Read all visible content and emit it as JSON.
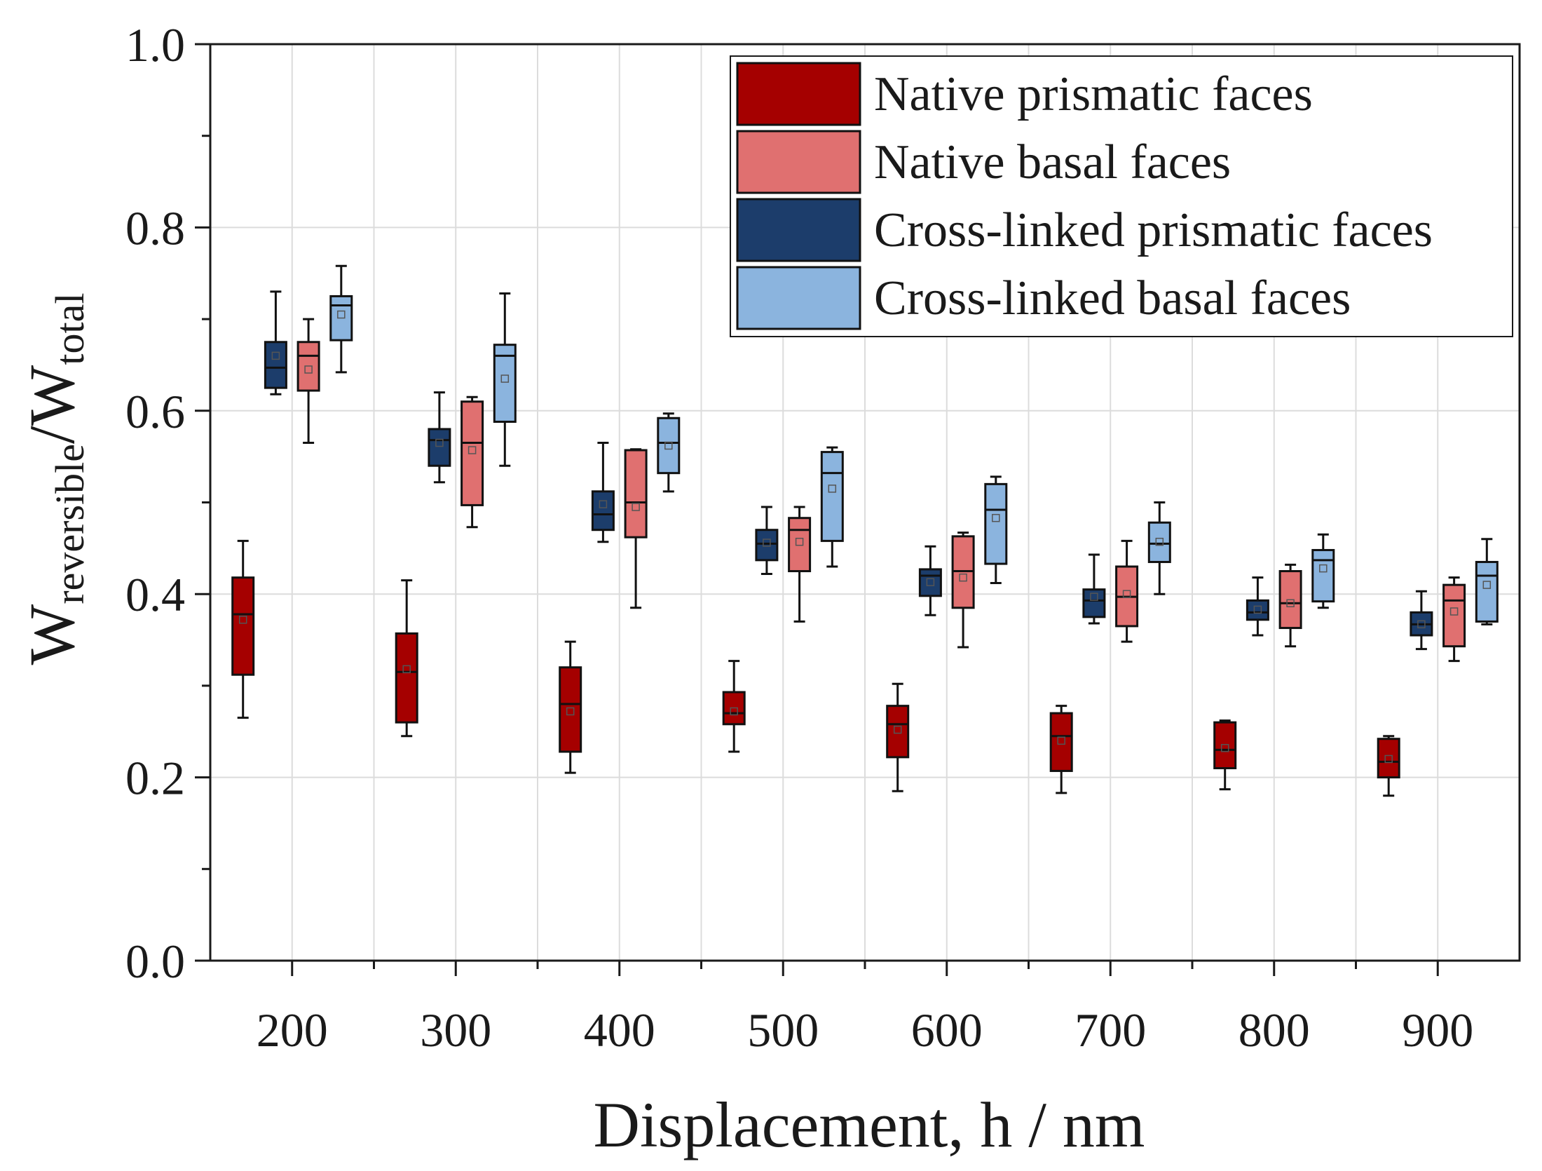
{
  "chart_data": {
    "type": "box",
    "xlabel": "Displacement, h / nm",
    "ylabel": {
      "main": "W",
      "sub1": "reversible",
      "slash": "/",
      "main2": "W",
      "sub2": "total"
    },
    "xlim": [
      150,
      950
    ],
    "ylim": [
      0.0,
      1.0
    ],
    "x_ticks": [
      200,
      300,
      400,
      500,
      600,
      700,
      800,
      900
    ],
    "x_tick_labels": [
      "200",
      "300",
      "400",
      "500",
      "600",
      "700",
      "800",
      "900"
    ],
    "y_ticks": [
      0.0,
      0.2,
      0.4,
      0.6,
      0.8,
      1.0
    ],
    "y_tick_labels": [
      "0.0",
      "0.2",
      "0.4",
      "0.6",
      "0.8",
      "1.0"
    ],
    "grid": true,
    "legend_position": "top-right",
    "series": [
      {
        "name": "Native prismatic faces",
        "color": "#a50000",
        "offset": -30,
        "boxes": [
          {
            "x": 200,
            "min": 0.265,
            "q1": 0.312,
            "median": 0.378,
            "q3": 0.418,
            "max": 0.458,
            "mean": 0.372
          },
          {
            "x": 300,
            "min": 0.245,
            "q1": 0.26,
            "median": 0.315,
            "q3": 0.357,
            "max": 0.415,
            "mean": 0.318
          },
          {
            "x": 400,
            "min": 0.205,
            "q1": 0.228,
            "median": 0.28,
            "q3": 0.32,
            "max": 0.348,
            "mean": 0.272
          },
          {
            "x": 500,
            "min": 0.228,
            "q1": 0.258,
            "median": 0.27,
            "q3": 0.293,
            "max": 0.327,
            "mean": 0.272
          },
          {
            "x": 600,
            "min": 0.185,
            "q1": 0.222,
            "median": 0.258,
            "q3": 0.278,
            "max": 0.302,
            "mean": 0.252
          },
          {
            "x": 700,
            "min": 0.183,
            "q1": 0.207,
            "median": 0.245,
            "q3": 0.27,
            "max": 0.278,
            "mean": 0.24
          },
          {
            "x": 800,
            "min": 0.187,
            "q1": 0.21,
            "median": 0.23,
            "q3": 0.26,
            "max": 0.262,
            "mean": 0.232
          },
          {
            "x": 900,
            "min": 0.18,
            "q1": 0.2,
            "median": 0.217,
            "q3": 0.242,
            "max": 0.245,
            "mean": 0.22
          }
        ]
      },
      {
        "name": "Native basal faces",
        "color": "#e07070",
        "offset": 10,
        "boxes": [
          {
            "x": 200,
            "min": 0.565,
            "q1": 0.622,
            "median": 0.66,
            "q3": 0.675,
            "max": 0.7,
            "mean": 0.645
          },
          {
            "x": 300,
            "min": 0.473,
            "q1": 0.497,
            "median": 0.565,
            "q3": 0.61,
            "max": 0.615,
            "mean": 0.557
          },
          {
            "x": 400,
            "min": 0.385,
            "q1": 0.462,
            "median": 0.5,
            "q3": 0.557,
            "max": 0.558,
            "mean": 0.495
          },
          {
            "x": 500,
            "min": 0.37,
            "q1": 0.425,
            "median": 0.47,
            "q3": 0.483,
            "max": 0.495,
            "mean": 0.457
          },
          {
            "x": 600,
            "min": 0.342,
            "q1": 0.385,
            "median": 0.425,
            "q3": 0.463,
            "max": 0.467,
            "mean": 0.418
          },
          {
            "x": 700,
            "min": 0.348,
            "q1": 0.365,
            "median": 0.397,
            "q3": 0.43,
            "max": 0.458,
            "mean": 0.4
          },
          {
            "x": 800,
            "min": 0.343,
            "q1": 0.363,
            "median": 0.39,
            "q3": 0.425,
            "max": 0.432,
            "mean": 0.39
          },
          {
            "x": 900,
            "min": 0.327,
            "q1": 0.343,
            "median": 0.393,
            "q3": 0.41,
            "max": 0.418,
            "mean": 0.381
          }
        ]
      },
      {
        "name": "Cross-linked prismatic faces",
        "color": "#1c3d6b",
        "offset": -10,
        "boxes": [
          {
            "x": 200,
            "min": 0.618,
            "q1": 0.625,
            "median": 0.647,
            "q3": 0.675,
            "max": 0.73,
            "mean": 0.66
          },
          {
            "x": 300,
            "min": 0.522,
            "q1": 0.54,
            "median": 0.568,
            "q3": 0.58,
            "max": 0.62,
            "mean": 0.565
          },
          {
            "x": 400,
            "min": 0.457,
            "q1": 0.47,
            "median": 0.487,
            "q3": 0.512,
            "max": 0.565,
            "mean": 0.498
          },
          {
            "x": 500,
            "min": 0.422,
            "q1": 0.437,
            "median": 0.455,
            "q3": 0.47,
            "max": 0.495,
            "mean": 0.456
          },
          {
            "x": 600,
            "min": 0.377,
            "q1": 0.398,
            "median": 0.42,
            "q3": 0.427,
            "max": 0.452,
            "mean": 0.413
          },
          {
            "x": 700,
            "min": 0.368,
            "q1": 0.375,
            "median": 0.393,
            "q3": 0.405,
            "max": 0.443,
            "mean": 0.397
          },
          {
            "x": 800,
            "min": 0.355,
            "q1": 0.372,
            "median": 0.38,
            "q3": 0.393,
            "max": 0.418,
            "mean": 0.383
          },
          {
            "x": 900,
            "min": 0.34,
            "q1": 0.355,
            "median": 0.367,
            "q3": 0.38,
            "max": 0.403,
            "mean": 0.367
          }
        ]
      },
      {
        "name": "Cross-linked basal faces",
        "color": "#8bb4de",
        "offset": 30,
        "boxes": [
          {
            "x": 200,
            "min": 0.642,
            "q1": 0.677,
            "median": 0.715,
            "q3": 0.725,
            "max": 0.758,
            "mean": 0.705
          },
          {
            "x": 300,
            "min": 0.54,
            "q1": 0.588,
            "median": 0.66,
            "q3": 0.672,
            "max": 0.728,
            "mean": 0.635
          },
          {
            "x": 400,
            "min": 0.512,
            "q1": 0.532,
            "median": 0.565,
            "q3": 0.592,
            "max": 0.597,
            "mean": 0.562
          },
          {
            "x": 500,
            "min": 0.43,
            "q1": 0.458,
            "median": 0.532,
            "q3": 0.555,
            "max": 0.56,
            "mean": 0.515
          },
          {
            "x": 600,
            "min": 0.412,
            "q1": 0.433,
            "median": 0.492,
            "q3": 0.52,
            "max": 0.528,
            "mean": 0.483
          },
          {
            "x": 700,
            "min": 0.4,
            "q1": 0.435,
            "median": 0.455,
            "q3": 0.478,
            "max": 0.5,
            "mean": 0.457
          },
          {
            "x": 800,
            "min": 0.385,
            "q1": 0.392,
            "median": 0.437,
            "q3": 0.448,
            "max": 0.465,
            "mean": 0.428
          },
          {
            "x": 900,
            "min": 0.367,
            "q1": 0.37,
            "median": 0.42,
            "q3": 0.435,
            "max": 0.46,
            "mean": 0.41
          }
        ]
      }
    ]
  }
}
